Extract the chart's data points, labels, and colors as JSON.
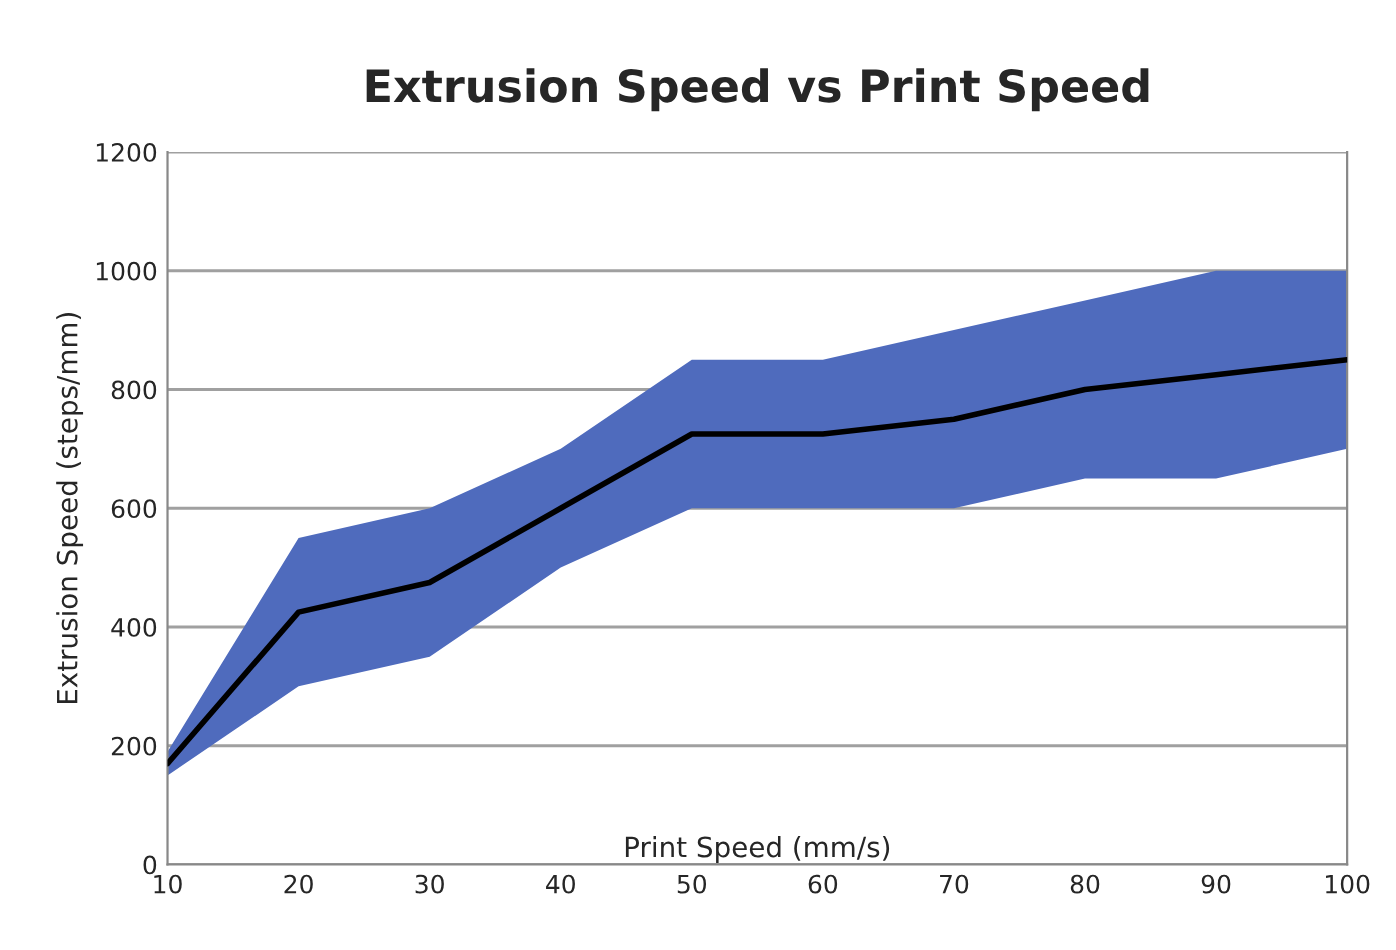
{
  "chart_data": {
    "type": "line",
    "title": "Extrusion Speed vs Print Speed",
    "xlabel": "Print Speed (mm/s)",
    "ylabel": "Extrusion Speed (steps/mm)",
    "x": [
      10,
      20,
      30,
      40,
      50,
      60,
      70,
      80,
      90,
      100
    ],
    "series": [
      {
        "color": "#000000",
        "values": [
          170,
          425,
          475,
          600,
          725,
          725,
          750,
          800,
          825,
          850
        ],
        "lower": [
          150,
          300,
          350,
          500,
          600,
          600,
          600,
          650,
          650,
          700
        ],
        "upper": [
          190,
          550,
          600,
          700,
          850,
          850,
          900,
          950,
          1000,
          1000
        ]
      }
    ],
    "xlim": [
      10,
      100
    ],
    "xticks": [
      10,
      20,
      30,
      40,
      50,
      60,
      70,
      80,
      90,
      100
    ],
    "ylim": [
      0,
      1200
    ],
    "yticks": [
      0,
      200,
      400,
      600,
      800,
      1000,
      1200
    ],
    "grid": "y",
    "legend": false,
    "marker": "none",
    "line_style": "solid"
  }
}
